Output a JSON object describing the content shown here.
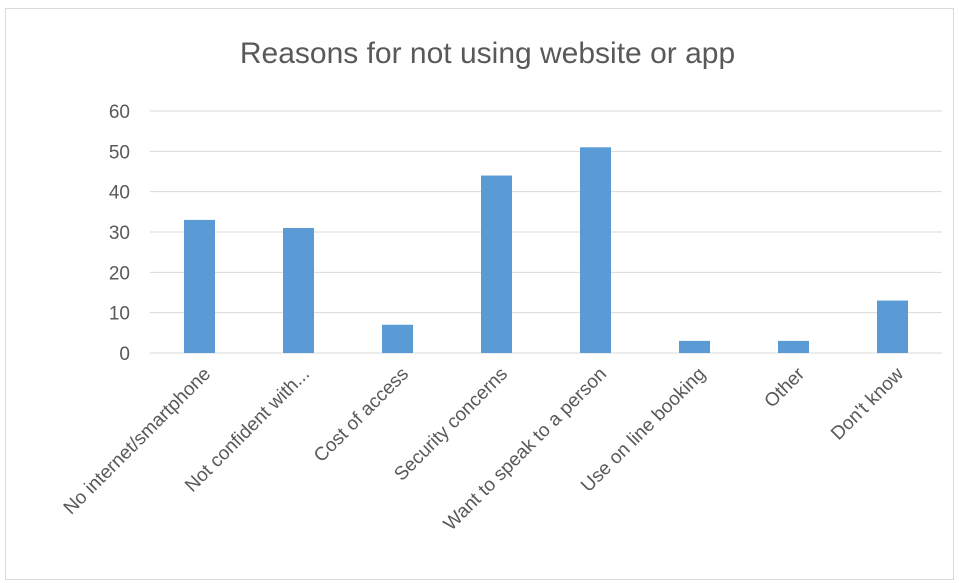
{
  "chart_data": {
    "type": "bar",
    "title": "Reasons for not using website or app",
    "xlabel": "",
    "ylabel": "",
    "categories": [
      "No internet/smartphone",
      "Not confident with...",
      "Cost of access",
      "Security concerns",
      "Want to speak to a person",
      "Use on line booking",
      "Other",
      "Don't know"
    ],
    "values": [
      33,
      31,
      7,
      44,
      51,
      3,
      3,
      13
    ],
    "ylim": [
      0,
      60
    ],
    "yticks": [
      "0",
      "10",
      "20",
      "30",
      "40",
      "50",
      "60"
    ],
    "grid": true,
    "legend": "none",
    "bar_color": "#5b9bd5",
    "grid_color": "#d9d9d9",
    "text_color": "#595959"
  }
}
